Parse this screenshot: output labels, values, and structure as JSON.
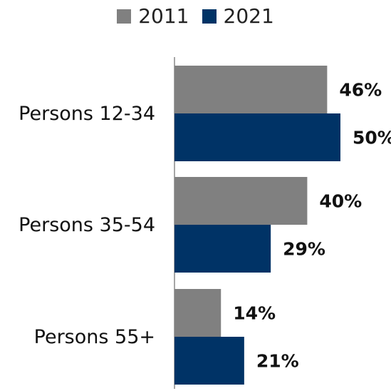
{
  "chart_data": {
    "type": "bar",
    "orientation": "horizontal",
    "categories": [
      "Persons 12-34",
      "Persons 35-54",
      "Persons 55+"
    ],
    "series": [
      {
        "name": "2011",
        "values": [
          46,
          40,
          14
        ],
        "labels": [
          "46%",
          "40%",
          "14%"
        ],
        "color": "#808080"
      },
      {
        "name": "2021",
        "values": [
          50,
          29,
          21
        ],
        "labels": [
          "50%",
          "29%",
          "21%"
        ],
        "color": "#003366"
      }
    ],
    "xlim": [
      0,
      50
    ],
    "grid": false,
    "legend_position": "top-center"
  }
}
